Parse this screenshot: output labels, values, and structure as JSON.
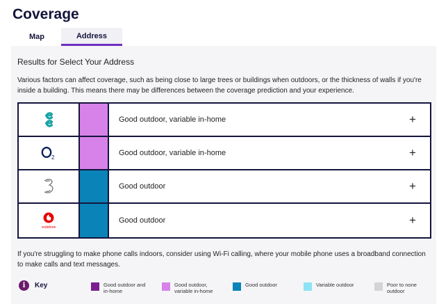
{
  "page": {
    "title": "Coverage",
    "tabs": [
      {
        "label": "Map",
        "active": false
      },
      {
        "label": "Address",
        "active": true
      }
    ]
  },
  "results": {
    "heading": "Results for Select Your Address",
    "intro": "Various factors can affect coverage, such as being close to large trees or buildings when outdoors, or the thickness of walls if you're inside a building. This means there may be differences between the coverage prediction and your experience."
  },
  "operators": [
    {
      "name": "EE",
      "logo_icon": "ee-logo-icon",
      "coverage": "Good outdoor, variable in-home",
      "swatch_color": "#d782e8",
      "expand_icon": "plus-icon",
      "expand_glyph": "+"
    },
    {
      "name": "O2",
      "logo_icon": "o2-logo-icon",
      "coverage": "Good outdoor, variable in-home",
      "swatch_color": "#d782e8",
      "expand_icon": "plus-icon",
      "expand_glyph": "+"
    },
    {
      "name": "Three",
      "logo_icon": "three-logo-icon",
      "coverage": "Good outdoor",
      "swatch_color": "#0a84b8",
      "expand_icon": "plus-icon",
      "expand_glyph": "+"
    },
    {
      "name": "Vodafone",
      "logo_icon": "vodafone-logo-icon",
      "logo_text": "vodafone",
      "coverage": "Good outdoor",
      "swatch_color": "#0a84b8",
      "expand_icon": "plus-icon",
      "expand_glyph": "+"
    }
  ],
  "wifi_note": "If you're struggling to make phone calls indoors, consider using Wi-Fi calling, where your mobile phone uses a broadband connection to make calls and text messages.",
  "key": {
    "icon": "info-icon",
    "icon_glyph": "i",
    "title": "Key",
    "items": [
      {
        "label": "Good outdoor and in-home",
        "color": "#7b1f8f"
      },
      {
        "label": "Good outdoor, variable in-home",
        "color": "#d782e8"
      },
      {
        "label": "Good outdoor",
        "color": "#0a84b8"
      },
      {
        "label": "Variable outdoor",
        "color": "#8de3f5"
      },
      {
        "label": "Poor to none outdoor",
        "color": "#d4d4d4"
      }
    ]
  }
}
